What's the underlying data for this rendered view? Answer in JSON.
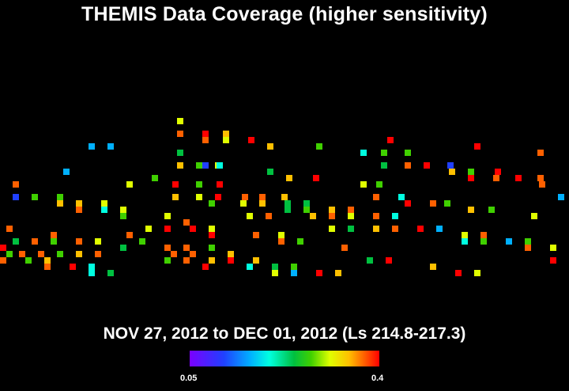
{
  "title": "THEMIS Data Coverage (higher sensitivity)",
  "subtitle": "NOV 27, 2012 to DEC 01, 2012 (Ls 214.8-217.3)",
  "colorbar": {
    "min_label": "0.05",
    "max_label": "0.4",
    "min": 0.05,
    "max": 0.4
  },
  "palette": [
    "#7a00ff",
    "#2040ff",
    "#00b0ff",
    "#00ffe0",
    "#00c040",
    "#40d000",
    "#e0ff00",
    "#ffc000",
    "#ff6000",
    "#ff0000"
  ],
  "coverage": [
    [
      3,
      0.28
    ],
    [
      4,
      0.4
    ],
    [
      5,
      0.31
    ],
    [
      6,
      0.38
    ],
    [
      7,
      0.14
    ],
    [
      8,
      0.38
    ],
    [
      9,
      0.27
    ],
    [
      10,
      0.4
    ],
    [
      11,
      0.34
    ],
    [
      12,
      0.26
    ],
    [
      13,
      0.39
    ],
    [
      14,
      0.14
    ],
    [
      15,
      0.26
    ],
    [
      16,
      0.15
    ],
    [
      17,
      0.39
    ],
    [
      18,
      0.2
    ],
    [
      19,
      0.26
    ],
    [
      20,
      0.1
    ],
    [
      21,
      0.34
    ],
    [
      22,
      0.28
    ],
    [
      23,
      0.37
    ],
    [
      24,
      0.15
    ],
    [
      25,
      0.23
    ],
    [
      26,
      0.21
    ],
    [
      27,
      0.4
    ],
    [
      28,
      0.07
    ],
    [
      29,
      0.38
    ],
    [
      30,
      0.26
    ],
    [
      31,
      0.31
    ],
    [
      32,
      0.39
    ],
    [
      33,
      0.22
    ],
    [
      34,
      0.32
    ],
    [
      35,
      0.39
    ],
    [
      36,
      0.3
    ],
    [
      37,
      0.12
    ],
    [
      38,
      0.25
    ],
    [
      39,
      0.4
    ],
    [
      40,
      0.37
    ],
    [
      41,
      0.36
    ],
    [
      42,
      0.29
    ],
    [
      43,
      0.4
    ],
    [
      44,
      0.24
    ],
    [
      45,
      0.4
    ],
    [
      46,
      0.39
    ],
    [
      47,
      0.25
    ],
    [
      48,
      0.35
    ],
    [
      49,
      0.1
    ],
    [
      50,
      0.25
    ],
    [
      51,
      0.24
    ],
    [
      52,
      0.32
    ],
    [
      53,
      0.29
    ],
    [
      54,
      0.4
    ],
    [
      55,
      0.36
    ],
    [
      56,
      0.38
    ],
    [
      57,
      0.33
    ],
    [
      58,
      0.35
    ],
    [
      59,
      0.15
    ],
    [
      60,
      0.11
    ],
    [
      61,
      0.37
    ],
    [
      62,
      0.33
    ],
    [
      63,
      0.32
    ],
    [
      64,
      0.29
    ],
    [
      65,
      0.29
    ],
    [
      66,
      0.26
    ],
    [
      67,
      0.28
    ],
    [
      68,
      0.31
    ],
    [
      69,
      0.2
    ],
    [
      70,
      0.21
    ],
    [
      71,
      0.31
    ],
    [
      72,
      0.35
    ],
    [
      73,
      0.24
    ],
    [
      74,
      0.31
    ],
    [
      75,
      0.25
    ],
    [
      76,
      0.23
    ],
    [
      77,
      0.21
    ],
    [
      78,
      0.36
    ],
    [
      79,
      0.16
    ],
    [
      80,
      0.24
    ],
    [
      81,
      0.27
    ],
    [
      82,
      0.3
    ],
    [
      83,
      0.37
    ],
    [
      84,
      0.16
    ],
    [
      85,
      0.28
    ],
    [
      86,
      0.35
    ],
    [
      87,
      0.37
    ],
    [
      88,
      0.4
    ],
    [
      89,
      0.4
    ],
    [
      90,
      0.27
    ],
    [
      91,
      0.39
    ],
    [
      92,
      0.37
    ],
    [
      93,
      0.31
    ],
    [
      94,
      0.36
    ],
    [
      95,
      0.4
    ],
    [
      96,
      0.12
    ],
    [
      97,
      0.27
    ],
    [
      98,
      0.38
    ],
    [
      99,
      0.4
    ],
    [
      100,
      0.36
    ],
    [
      101,
      0.29
    ],
    [
      102,
      0.25
    ],
    [
      103,
      0.36
    ],
    [
      104,
      0.25
    ],
    [
      105,
      0.16
    ],
    [
      106,
      0.24
    ],
    [
      107,
      0.12
    ],
    [
      108,
      0.25
    ],
    [
      109,
      0.29
    ],
    [
      110,
      0.21
    ],
    [
      111,
      0.35
    ],
    [
      112,
      0.38
    ],
    [
      113,
      0.25
    ],
    [
      114,
      0.36
    ],
    [
      115,
      0.38
    ],
    [
      116,
      0.36
    ],
    [
      117,
      0.23
    ],
    [
      118,
      0.34
    ],
    [
      119,
      0.23
    ],
    [
      120,
      0.38
    ],
    [
      121,
      0.34
    ],
    [
      122,
      0.39
    ],
    [
      123,
      0.34
    ],
    [
      124,
      0.21
    ],
    [
      125,
      0.4
    ],
    [
      126,
      0.4
    ],
    [
      127,
      0.38
    ],
    [
      128,
      0.4
    ],
    [
      129,
      0.18
    ],
    [
      130,
      0.39
    ],
    [
      131,
      0.18
    ],
    [
      132,
      0.22
    ],
    [
      133,
      0.24
    ],
    [
      134,
      0.31
    ],
    [
      135,
      0.29
    ],
    [
      136,
      0.12
    ],
    [
      137,
      0.16
    ],
    [
      138,
      0.19
    ],
    [
      139,
      0.39
    ],
    [
      140,
      0.33
    ],
    [
      141,
      0.4
    ],
    [
      142,
      0.28
    ],
    [
      143,
      0.39
    ],
    [
      144,
      0.35
    ],
    [
      145,
      0.2
    ],
    [
      146,
      0.3
    ],
    [
      147,
      0.3
    ],
    [
      148,
      0.31
    ],
    [
      149,
      0.35
    ],
    [
      150,
      0.35
    ],
    [
      151,
      0.38
    ],
    [
      152,
      0.31
    ],
    [
      153,
      0.23
    ],
    [
      154,
      0.38
    ],
    [
      155,
      0.38
    ],
    [
      156,
      0.25
    ],
    [
      157,
      0.21
    ],
    [
      158,
      0.35
    ],
    [
      159,
      0.26
    ],
    [
      160,
      0.37
    ],
    [
      161,
      0.28
    ],
    [
      162,
      0.35
    ],
    [
      163,
      0.28
    ],
    [
      164,
      0.38
    ],
    [
      165,
      0.33
    ],
    [
      166,
      0.36
    ]
  ]
}
